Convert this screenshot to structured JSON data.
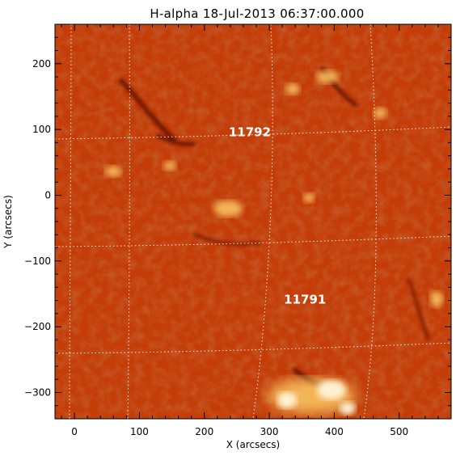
{
  "title": "H-alpha 18-Jul-2013 06:37:00.000",
  "x_axis": {
    "label": "X (arcsecs)",
    "range": [
      -30,
      580
    ],
    "ticks": [
      0,
      100,
      200,
      300,
      400,
      500
    ]
  },
  "y_axis": {
    "label": "Y (arcsecs)",
    "range": [
      -340,
      260
    ],
    "ticks": [
      200,
      100,
      0,
      -100,
      -200,
      -300
    ]
  },
  "tick_labels": {
    "x": [
      "0",
      "100",
      "200",
      "300",
      "400",
      "500"
    ],
    "y": [
      "200",
      "100",
      "0",
      "−100",
      "−200",
      "−300"
    ]
  },
  "regions": [
    {
      "label": "11792",
      "x": 270,
      "y": 90
    },
    {
      "label": "11791",
      "x": 355,
      "y": -165
    }
  ],
  "colors": {
    "background": "#c43c08",
    "dark": "#6e1404",
    "bright": "#ffd26a",
    "white": "#fff6dc",
    "grid": "#ffffff"
  }
}
